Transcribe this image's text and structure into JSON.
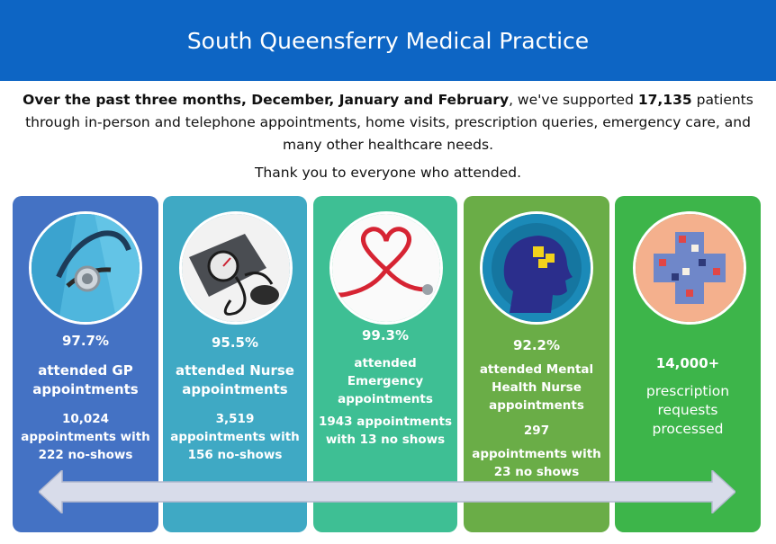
{
  "header": {
    "title": "South Queensferry Medical Practice"
  },
  "intro": {
    "bold_period": "Over the past three months, December, January and February",
    "text_1": ", we've supported ",
    "bold_count": "17,135",
    "text_2": " patients through in-person and telephone appointments, home visits, prescription queries, emergency care, and many other healthcare needs.",
    "thanks": "Thank you to everyone who attended."
  },
  "panels": [
    {
      "percent": "97.7%",
      "label": "attended GP appointments",
      "count": "10,024 appointments with 222 no-shows",
      "color": "#4472c4",
      "icon": "stethoscope-icon"
    },
    {
      "percent": "95.5%",
      "label": "attended Nurse appointments",
      "count": "3,519 appointments with 156 no-shows",
      "color": "#3fa9c4",
      "icon": "blood-pressure-monitor-icon"
    },
    {
      "percent": "99.3%",
      "label": "attended Emergency appointments",
      "count": "1943 appointments with 13 no shows",
      "color": "#3ebf94",
      "icon": "heart-stethoscope-icon"
    },
    {
      "percent": "92.2%",
      "label": "attended Mental Health Nurse appointments",
      "count_number": "297",
      "count_text": "appointments with 23 no shows",
      "color": "#6aad47",
      "icon": "head-puzzle-icon"
    },
    {
      "headline": "14,000+",
      "label": "prescription requests processed",
      "color": "#3db54a",
      "icon": "pill-cross-icon"
    }
  ]
}
